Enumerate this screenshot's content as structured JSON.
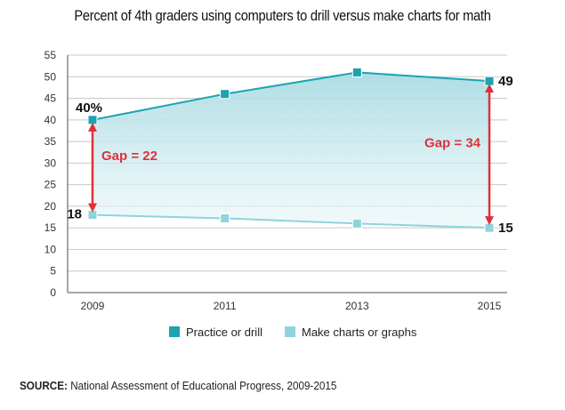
{
  "chart_data": {
    "type": "line",
    "title": "Percent of 4th graders using computers to drill versus make charts for math",
    "x": [
      "2009",
      "2011",
      "2013",
      "2015"
    ],
    "ylim": [
      0,
      55
    ],
    "yticks": [
      0,
      5,
      10,
      15,
      20,
      25,
      30,
      35,
      40,
      45,
      50,
      55
    ],
    "grid": true,
    "legend_placement": "bottom-center",
    "series": [
      {
        "name": "Practice or drill",
        "values": [
          40,
          46,
          51,
          49
        ],
        "color": "#1ba3b0"
      },
      {
        "name": "Make charts or graphs",
        "values": [
          18,
          17.2,
          16,
          15
        ],
        "color": "#8fd3dc"
      }
    ],
    "data_labels": [
      {
        "series": 0,
        "index": 0,
        "text": "40%"
      },
      {
        "series": 0,
        "index": 3,
        "text": "49"
      },
      {
        "series": 1,
        "index": 0,
        "text": "18"
      },
      {
        "series": 1,
        "index": 3,
        "text": "15"
      }
    ],
    "annotations": [
      {
        "index": 0,
        "from": 18,
        "to": 40,
        "text": "Gap = 22"
      },
      {
        "index": 3,
        "from": 15,
        "to": 49,
        "text": "Gap = 34"
      }
    ],
    "colors": {
      "gap": "#e0303a",
      "grid": "#c8c8c8",
      "axis": "#8a8a8a",
      "fill_top": "#a9dbe3"
    }
  },
  "source": {
    "label": "SOURCE:",
    "text": "National Assessment of Educational Progress, 2009-2015"
  }
}
